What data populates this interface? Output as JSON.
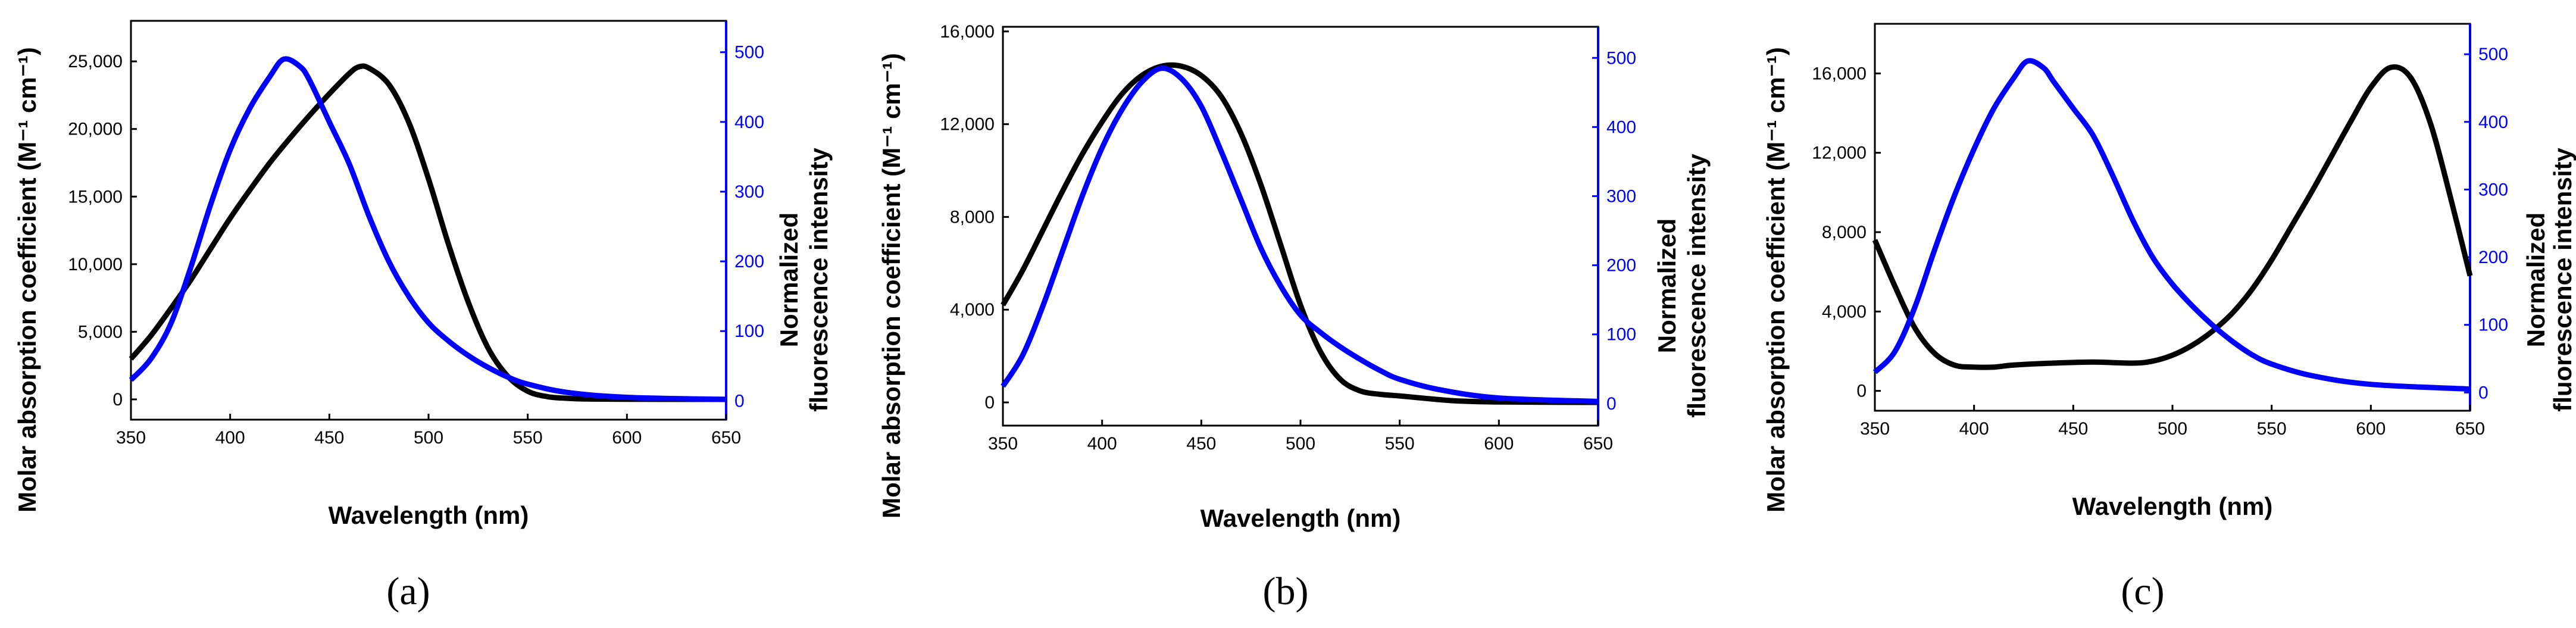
{
  "colors": {
    "absorption": "#000000",
    "fluorescence": "#0000ff",
    "axis": "#000000"
  },
  "chart_data": [
    {
      "panel_label": "(a)",
      "type": "line",
      "xlabel": "Wavelength (nm)",
      "ylabel_left": "Molar absorption coefficient (M⁻¹ cm⁻¹)",
      "ylabel_right_line1": "Normalized",
      "ylabel_right_line2": "fluorescence intensity",
      "xlim": [
        350,
        650
      ],
      "xticks": [
        350,
        400,
        450,
        500,
        550,
        600,
        650
      ],
      "ylim_left": [
        -1500,
        28000
      ],
      "yticks_left": [
        0,
        5000,
        10000,
        15000,
        20000,
        25000
      ],
      "yticklabels_left": [
        "0",
        "5,000",
        "10,000",
        "15,000",
        "20,000",
        "25,000"
      ],
      "ylim_right": [
        -27,
        545
      ],
      "yticks_right": [
        0,
        100,
        200,
        300,
        400,
        500
      ],
      "series": [
        {
          "name": "Absorption",
          "axis": "left",
          "x": [
            350,
            360,
            370,
            380,
            390,
            400,
            410,
            420,
            430,
            440,
            450,
            460,
            465,
            470,
            480,
            490,
            500,
            510,
            520,
            530,
            540,
            550,
            560,
            570,
            580,
            600,
            650
          ],
          "y": [
            3000,
            4700,
            6700,
            8800,
            11100,
            13400,
            15500,
            17500,
            19300,
            21000,
            22600,
            24100,
            24600,
            24500,
            23300,
            20500,
            16300,
            11500,
            7200,
            3800,
            1700,
            600,
            200,
            80,
            30,
            10,
            0
          ]
        },
        {
          "name": "Fluorescence",
          "axis": "right",
          "x": [
            350,
            360,
            370,
            380,
            390,
            400,
            410,
            420,
            427,
            435,
            440,
            450,
            460,
            470,
            480,
            490,
            500,
            510,
            520,
            530,
            540,
            550,
            570,
            600,
            650
          ],
          "y": [
            30,
            60,
            110,
            190,
            280,
            360,
            420,
            465,
            490,
            480,
            460,
            400,
            340,
            265,
            200,
            150,
            112,
            86,
            65,
            48,
            34,
            24,
            12,
            5,
            2
          ]
        }
      ]
    },
    {
      "panel_label": "(b)",
      "type": "line",
      "xlabel": "Wavelength (nm)",
      "ylabel_left": "Molar absorption coefficient (M⁻¹ cm⁻¹)",
      "ylabel_right_line1": "Normalized",
      "ylabel_right_line2": "fluorescence intensity",
      "xlim": [
        350,
        650
      ],
      "xticks": [
        350,
        400,
        450,
        500,
        550,
        600,
        650
      ],
      "ylim_left": [
        -1000,
        16200
      ],
      "yticks_left": [
        0,
        4000,
        8000,
        12000,
        16000
      ],
      "yticklabels_left": [
        "0",
        "4,000",
        "8,000",
        "12,000",
        "16,000"
      ],
      "ylim_right": [
        -32,
        545
      ],
      "yticks_right": [
        0,
        100,
        200,
        300,
        400,
        500
      ],
      "series": [
        {
          "name": "Absorption",
          "axis": "left",
          "x": [
            350,
            360,
            370,
            380,
            390,
            400,
            410,
            420,
            430,
            440,
            450,
            460,
            470,
            480,
            490,
            500,
            510,
            520,
            530,
            540,
            550,
            560,
            570,
            580,
            600,
            650
          ],
          "y": [
            4200,
            5700,
            7400,
            9100,
            10700,
            12100,
            13300,
            14100,
            14500,
            14500,
            14100,
            13200,
            11600,
            9400,
            6800,
            4200,
            2200,
            1000,
            500,
            350,
            280,
            200,
            120,
            60,
            20,
            0
          ]
        },
        {
          "name": "Fluorescence",
          "axis": "right",
          "x": [
            350,
            360,
            370,
            380,
            390,
            400,
            410,
            420,
            430,
            440,
            450,
            460,
            470,
            480,
            490,
            500,
            510,
            520,
            530,
            540,
            550,
            570,
            600,
            650
          ],
          "y": [
            25,
            70,
            140,
            220,
            300,
            370,
            425,
            465,
            485,
            470,
            430,
            365,
            295,
            225,
            170,
            128,
            103,
            82,
            64,
            48,
            35,
            20,
            8,
            3
          ]
        }
      ]
    },
    {
      "panel_label": "(c)",
      "type": "line",
      "xlabel": "Wavelength (nm)",
      "ylabel_left": "Molar absorption coefficient (M⁻¹ cm⁻¹)",
      "ylabel_right_line1": "Normalized",
      "ylabel_right_line2": "fluorescence intensity",
      "xlim": [
        350,
        650
      ],
      "xticks": [
        350,
        400,
        450,
        500,
        550,
        600,
        650
      ],
      "ylim_left": [
        -1000,
        18500
      ],
      "yticks_left": [
        0,
        4000,
        8000,
        12000,
        16000
      ],
      "yticklabels_left": [
        "0",
        "4,000",
        "8,000",
        "12,000",
        "16,000"
      ],
      "ylim_right": [
        -27,
        545
      ],
      "yticks_right": [
        0,
        100,
        200,
        300,
        400,
        500
      ],
      "series": [
        {
          "name": "Absorption",
          "axis": "left",
          "x": [
            350,
            360,
            370,
            380,
            390,
            400,
            410,
            420,
            440,
            460,
            480,
            490,
            500,
            510,
            520,
            530,
            540,
            550,
            560,
            570,
            580,
            590,
            600,
            610,
            620,
            630,
            640,
            650
          ],
          "y": [
            7600,
            5300,
            3200,
            1900,
            1300,
            1200,
            1200,
            1300,
            1400,
            1450,
            1400,
            1500,
            1800,
            2300,
            3000,
            3900,
            5100,
            6600,
            8300,
            10000,
            11800,
            13600,
            15300,
            16300,
            15800,
            13500,
            9800,
            5800
          ]
        },
        {
          "name": "Fluorescence",
          "axis": "right",
          "x": [
            350,
            360,
            370,
            380,
            390,
            400,
            410,
            420,
            427,
            435,
            440,
            450,
            460,
            470,
            480,
            490,
            500,
            510,
            520,
            530,
            540,
            550,
            570,
            600,
            650
          ],
          "y": [
            30,
            60,
            125,
            210,
            290,
            360,
            420,
            465,
            490,
            480,
            460,
            420,
            380,
            320,
            255,
            200,
            160,
            128,
            100,
            76,
            56,
            42,
            25,
            12,
            5
          ]
        }
      ]
    }
  ]
}
